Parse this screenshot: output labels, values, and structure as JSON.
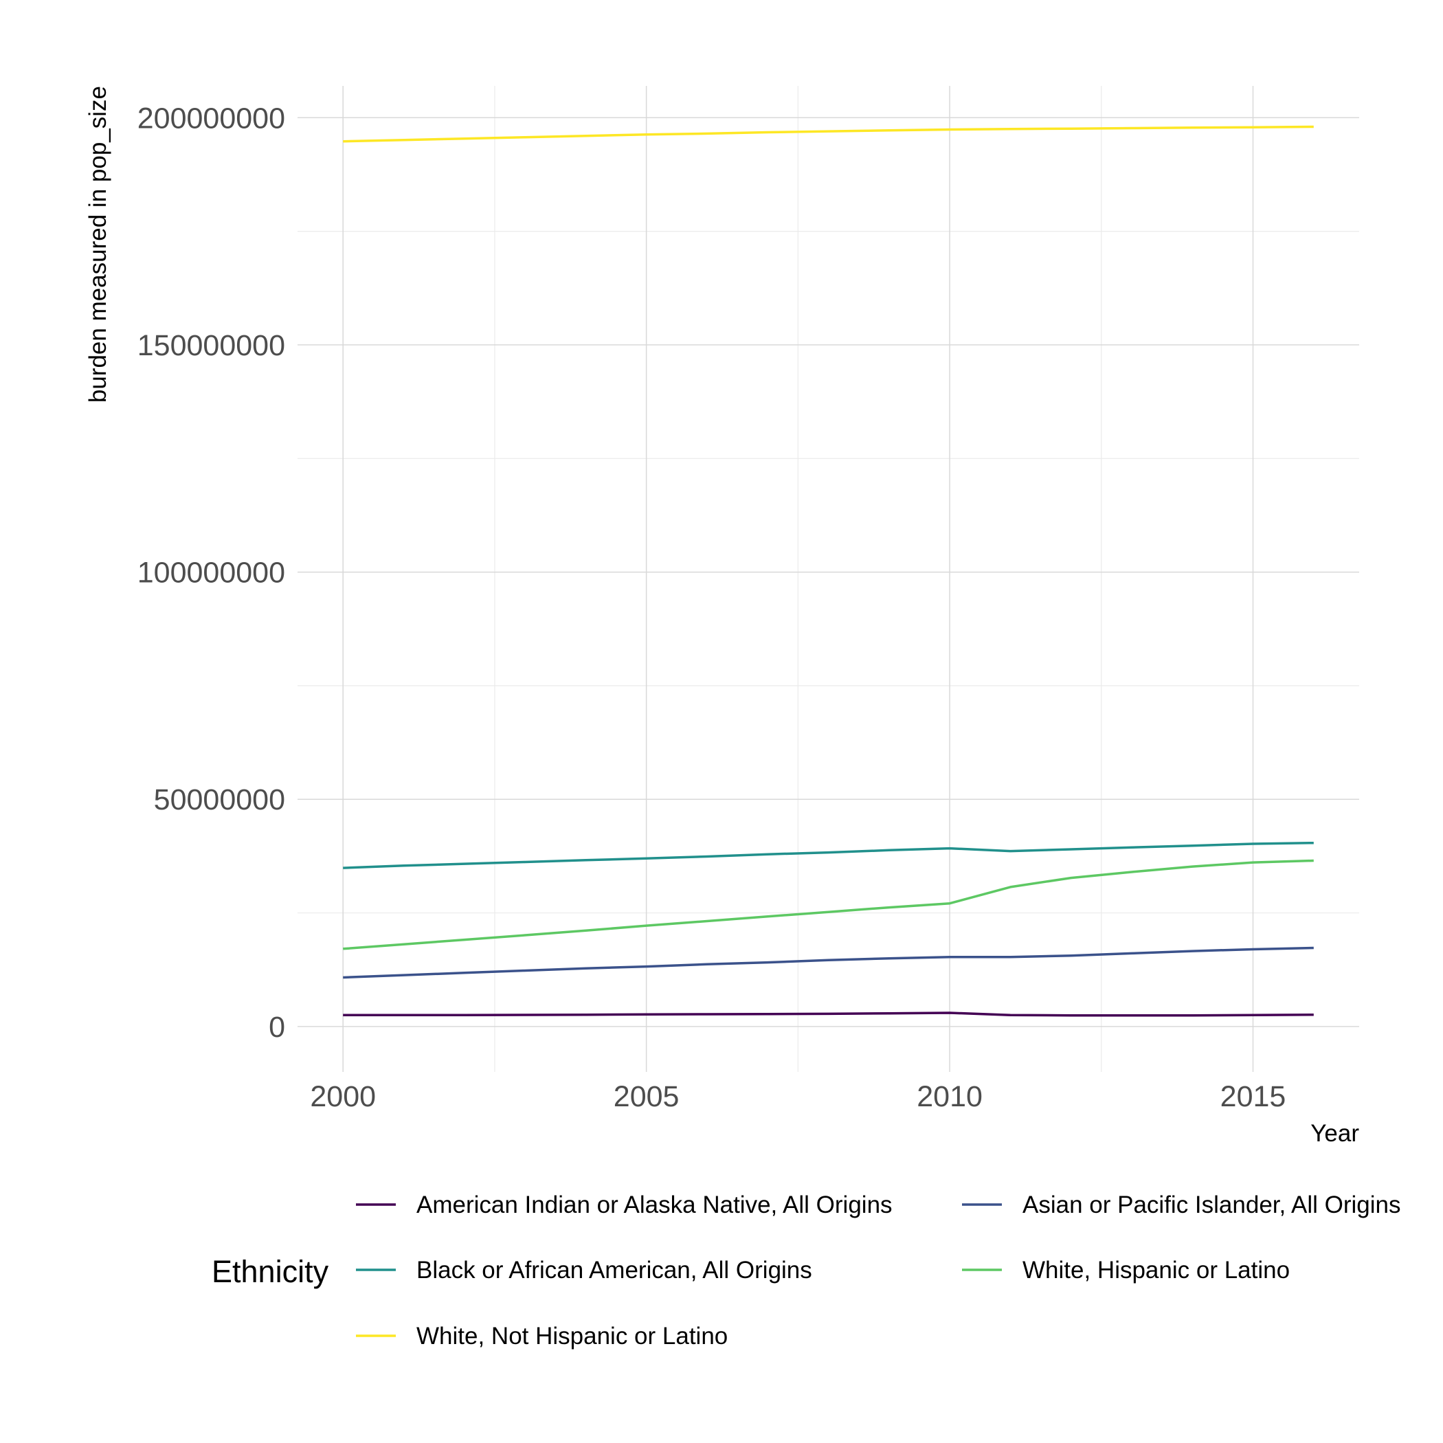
{
  "chart_data": {
    "type": "line",
    "title": "",
    "xlabel": "Year",
    "ylabel": "burden measured in pop_size",
    "xlim": [
      1999.25,
      2016.75
    ],
    "ylim": [
      -10000000,
      207000000
    ],
    "x_ticks": [
      2000,
      2005,
      2010,
      2015
    ],
    "x_tick_labels": [
      "2000",
      "2005",
      "2010",
      "2015"
    ],
    "y_ticks": [
      0,
      50000000,
      100000000,
      150000000,
      200000000
    ],
    "y_tick_labels": [
      "0",
      "50000000",
      "100000000",
      "150000000",
      "200000000"
    ],
    "grid": true,
    "legend_title": "Ethnicity",
    "legend_position": "bottom",
    "x": [
      2000,
      2001,
      2002,
      2003,
      2004,
      2005,
      2006,
      2007,
      2008,
      2009,
      2010,
      2011,
      2012,
      2013,
      2014,
      2015,
      2016
    ],
    "series": [
      {
        "name": "American Indian or Alaska Native, All Origins",
        "color": "#440154",
        "values": [
          2500000,
          2500000,
          2500000,
          2550000,
          2600000,
          2650000,
          2700000,
          2750000,
          2800000,
          2900000,
          3000000,
          2500000,
          2450000,
          2450000,
          2450000,
          2500000,
          2600000
        ]
      },
      {
        "name": "Asian or Pacific Islander, All Origins",
        "color": "#3B528B",
        "values": [
          10800000,
          11300000,
          11800000,
          12300000,
          12800000,
          13200000,
          13700000,
          14100000,
          14600000,
          15000000,
          15300000,
          15300000,
          15600000,
          16100000,
          16600000,
          17000000,
          17300000
        ]
      },
      {
        "name": "Black or African American, All Origins",
        "color": "#21908C",
        "values": [
          34900000,
          35400000,
          35800000,
          36200000,
          36600000,
          37000000,
          37400000,
          37900000,
          38300000,
          38800000,
          39200000,
          38600000,
          39000000,
          39400000,
          39800000,
          40200000,
          40400000
        ]
      },
      {
        "name": "White, Hispanic or Latino",
        "color": "#5DC863",
        "values": [
          17100000,
          18100000,
          19100000,
          20100000,
          21100000,
          22200000,
          23200000,
          24200000,
          25200000,
          26200000,
          27100000,
          30700000,
          32700000,
          34000000,
          35200000,
          36100000,
          36500000
        ]
      },
      {
        "name": "White, Not Hispanic or Latino",
        "color": "#FDE725",
        "values": [
          194800000,
          195100000,
          195400000,
          195700000,
          196000000,
          196300000,
          196500000,
          196800000,
          197000000,
          197200000,
          197400000,
          197500000,
          197600000,
          197700000,
          197800000,
          197900000,
          198000000
        ]
      }
    ]
  }
}
